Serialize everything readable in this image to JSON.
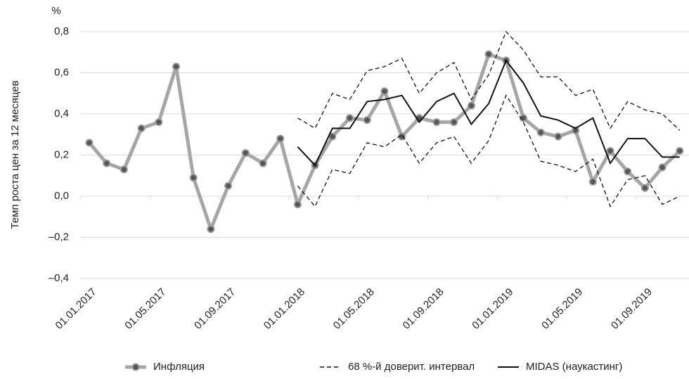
{
  "chart_data": {
    "type": "line",
    "unit": "%",
    "y_label": "Темп роста цен за 12 месяцев",
    "categories": [
      "01.01.2017",
      null,
      null,
      null,
      "01.05.2017",
      null,
      null,
      null,
      "01.09.2017",
      null,
      null,
      null,
      "01.01.2018",
      null,
      null,
      null,
      "01.05.2018",
      null,
      null,
      null,
      "01.09.2018",
      null,
      null,
      null,
      "01.01.2019",
      null,
      null,
      null,
      "01.05.2019",
      null,
      null,
      null,
      "01.09.2019",
      null,
      null
    ],
    "ylim": [
      -0.4,
      0.8
    ],
    "yticks": [
      {
        "value": -0.4,
        "label": "–0,4"
      },
      {
        "value": -0.2,
        "label": "–0,2"
      },
      {
        "value": 0,
        "label": "0,0"
      },
      {
        "value": 0.2,
        "label": "0,2"
      },
      {
        "value": 0.4,
        "label": "0,4"
      },
      {
        "value": 0.6,
        "label": "0,6"
      },
      {
        "value": 0.8,
        "label": "0,8"
      }
    ],
    "grid": true,
    "legend": "bottom",
    "series": [
      {
        "name": "Инфляция",
        "color": "#a6a6a6",
        "style": "markers",
        "values": [
          0.26,
          0.16,
          0.13,
          0.33,
          0.36,
          0.63,
          0.09,
          -0.16,
          0.05,
          0.21,
          0.16,
          0.28,
          -0.04,
          0.15,
          0.29,
          0.38,
          0.37,
          0.51,
          0.29,
          0.38,
          0.36,
          0.36,
          0.44,
          0.69,
          0.66,
          0.38,
          0.31,
          0.29,
          0.32,
          0.07,
          0.22,
          0.12,
          0.04,
          0.14,
          0.22
        ]
      },
      {
        "name": "68 %-й доверит. интервал",
        "color": "#111111",
        "style": "band",
        "upper": [
          null,
          null,
          null,
          null,
          null,
          null,
          null,
          null,
          null,
          null,
          null,
          null,
          0.38,
          0.33,
          0.5,
          0.47,
          0.61,
          0.63,
          0.67,
          0.5,
          0.6,
          0.65,
          0.47,
          0.59,
          0.8,
          0.71,
          0.58,
          0.58,
          0.49,
          0.52,
          0.33,
          0.46,
          0.42,
          0.4,
          0.32
        ],
        "lower": [
          null,
          null,
          null,
          null,
          null,
          null,
          null,
          null,
          null,
          null,
          null,
          null,
          0.05,
          -0.05,
          0.13,
          0.11,
          0.26,
          0.24,
          0.3,
          0.16,
          0.26,
          0.29,
          0.16,
          0.27,
          0.49,
          0.36,
          0.17,
          0.15,
          0.12,
          0.18,
          -0.05,
          0.08,
          0.1,
          -0.04,
          0.0
        ]
      },
      {
        "name": "MIDAS (наукастинг)",
        "color": "#111111",
        "style": "solid",
        "values": [
          null,
          null,
          null,
          null,
          null,
          null,
          null,
          null,
          null,
          null,
          null,
          null,
          0.24,
          0.15,
          0.33,
          0.33,
          0.46,
          0.47,
          0.49,
          0.36,
          0.46,
          0.5,
          0.35,
          0.45,
          0.66,
          0.55,
          0.39,
          0.37,
          0.33,
          0.38,
          0.16,
          0.28,
          0.28,
          0.19,
          0.19
        ]
      }
    ]
  }
}
